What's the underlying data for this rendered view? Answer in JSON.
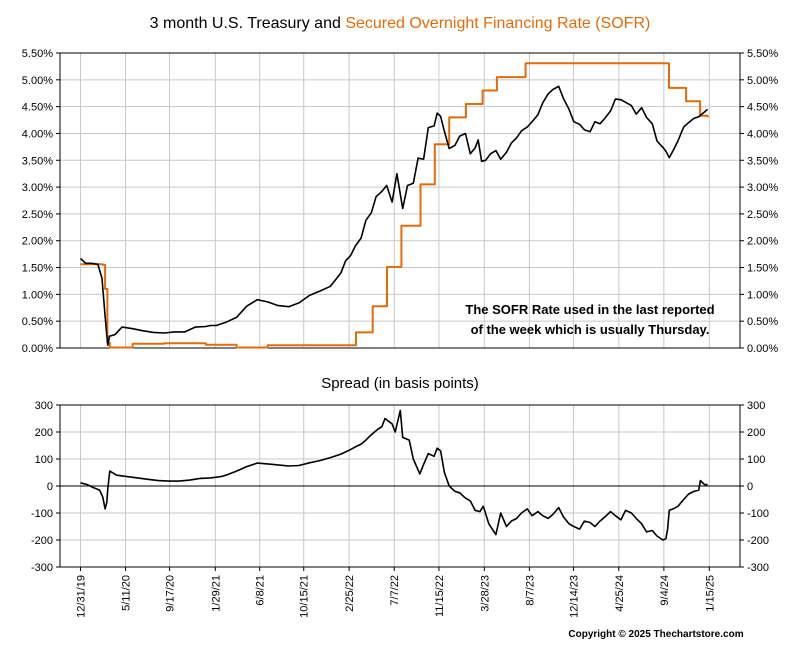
{
  "chart_data": [
    {
      "type": "line",
      "title_part1": "3 month U.S. Treasury and ",
      "title_part2": "Secured Overnight Financing Rate (SOFR)",
      "annotation_line1": "The SOFR Rate used in the last reported",
      "annotation_line2": "of the week which is usually Thursday.",
      "ylim": [
        0,
        5.5
      ],
      "yticks": [
        "0.00%",
        "0.50%",
        "1.00%",
        "1.50%",
        "2.00%",
        "2.50%",
        "3.00%",
        "3.50%",
        "4.00%",
        "4.50%",
        "5.00%",
        "5.50%"
      ],
      "grid": true,
      "colors": {
        "treasury": "#000000",
        "sofr": "#E36C0A"
      },
      "series": [
        {
          "key": "treasury",
          "x": [
            "2019-12-31",
            "2020-01-15",
            "2020-02-01",
            "2020-02-20",
            "2020-03-03",
            "2020-03-10",
            "2020-03-16",
            "2020-03-20",
            "2020-03-25",
            "2020-04-10",
            "2020-05-01",
            "2020-06-01",
            "2020-07-01",
            "2020-08-01",
            "2020-09-01",
            "2020-10-01",
            "2020-11-01",
            "2020-12-01",
            "2021-01-01",
            "2021-01-15",
            "2021-02-01",
            "2021-02-15",
            "2021-03-01",
            "2021-04-01",
            "2021-05-01",
            "2021-06-01",
            "2021-07-01",
            "2021-08-01",
            "2021-09-01",
            "2021-10-01",
            "2021-11-01",
            "2021-12-01",
            "2022-01-01",
            "2022-01-15",
            "2022-02-01",
            "2022-02-15",
            "2022-03-01",
            "2022-03-15",
            "2022-04-01",
            "2022-04-15",
            "2022-05-01",
            "2022-05-15",
            "2022-06-01",
            "2022-06-15",
            "2022-07-01",
            "2022-07-15",
            "2022-08-01",
            "2022-08-15",
            "2022-09-01",
            "2022-09-15",
            "2022-10-01",
            "2022-10-15",
            "2022-11-01",
            "2022-11-10",
            "2022-11-20",
            "2022-12-01",
            "2022-12-15",
            "2023-01-01",
            "2023-01-15",
            "2023-02-01",
            "2023-02-15",
            "2023-03-01",
            "2023-03-10",
            "2023-03-20",
            "2023-04-01",
            "2023-04-15",
            "2023-05-01",
            "2023-05-15",
            "2023-06-01",
            "2023-06-15",
            "2023-07-01",
            "2023-07-15",
            "2023-08-01",
            "2023-08-15",
            "2023-09-01",
            "2023-09-15",
            "2023-10-01",
            "2023-10-15",
            "2023-11-01",
            "2023-11-15",
            "2023-12-01",
            "2023-12-15",
            "2024-01-01",
            "2024-01-15",
            "2024-02-01",
            "2024-02-15",
            "2024-03-01",
            "2024-03-15",
            "2024-04-01",
            "2024-04-15",
            "2024-05-01",
            "2024-05-15",
            "2024-06-01",
            "2024-06-15",
            "2024-07-01",
            "2024-07-15",
            "2024-08-01",
            "2024-08-15",
            "2024-09-01",
            "2024-09-10",
            "2024-09-20",
            "2024-10-01",
            "2024-10-15",
            "2024-11-01",
            "2024-11-15",
            "2024-12-01",
            "2024-12-15",
            "2025-01-01",
            "2025-01-10"
          ],
          "values": [
            1.67,
            1.58,
            1.58,
            1.56,
            1.3,
            0.75,
            0.32,
            0.05,
            0.22,
            0.25,
            0.39,
            0.36,
            0.32,
            0.29,
            0.28,
            0.3,
            0.3,
            0.39,
            0.4,
            0.42,
            0.42,
            0.45,
            0.48,
            0.57,
            0.78,
            0.9,
            0.86,
            0.79,
            0.77,
            0.84,
            0.98,
            1.06,
            1.15,
            1.26,
            1.4,
            1.63,
            1.72,
            1.9,
            2.05,
            2.38,
            2.52,
            2.82,
            2.92,
            3.03,
            2.72,
            3.25,
            2.6,
            3.03,
            3.07,
            3.54,
            3.52,
            4.11,
            4.14,
            4.38,
            4.32,
            4.04,
            3.72,
            3.78,
            3.95,
            4.0,
            3.62,
            3.73,
            3.88,
            3.48,
            3.5,
            3.62,
            3.68,
            3.52,
            3.65,
            3.82,
            3.92,
            4.05,
            4.12,
            4.22,
            4.35,
            4.57,
            4.74,
            4.82,
            4.88,
            4.65,
            4.45,
            4.22,
            4.17,
            4.07,
            4.03,
            4.22,
            4.18,
            4.28,
            4.42,
            4.64,
            4.63,
            4.58,
            4.52,
            4.36,
            4.48,
            4.3,
            4.18,
            3.86,
            3.74,
            3.67,
            3.55,
            3.68,
            3.86,
            4.12,
            4.2,
            4.28,
            4.31,
            4.4,
            4.45
          ]
        },
        {
          "key": "sofr",
          "x": [
            "2019-12-31",
            "2020-02-27",
            "2020-03-05",
            "2020-03-12",
            "2020-03-19",
            "2020-03-26",
            "2020-06-01",
            "2020-09-01",
            "2021-01-01",
            "2021-04-01",
            "2021-07-01",
            "2022-03-17",
            "2022-05-05",
            "2022-06-16",
            "2022-07-28",
            "2022-09-22",
            "2022-11-03",
            "2022-12-15",
            "2023-02-02",
            "2023-03-23",
            "2023-05-04",
            "2023-07-27",
            "2024-09-19",
            "2024-11-08",
            "2024-12-19",
            "2025-01-10"
          ],
          "values": [
            1.56,
            1.56,
            1.55,
            1.1,
            0.1,
            0.01,
            0.08,
            0.09,
            0.06,
            0.01,
            0.05,
            0.29,
            0.78,
            1.51,
            2.28,
            3.05,
            3.8,
            4.3,
            4.55,
            4.8,
            5.05,
            5.31,
            4.85,
            4.6,
            4.33,
            4.3
          ]
        }
      ]
    },
    {
      "type": "line",
      "title": "Spread (in basis points)",
      "ylim": [
        -300,
        300
      ],
      "yticks": [
        "-300",
        "-200",
        "-100",
        "0",
        "100",
        "200",
        "300"
      ],
      "grid": true,
      "zero_line": true,
      "xticks": [
        "12/31/19",
        "5/11/20",
        "9/17/20",
        "1/29/21",
        "6/8/21",
        "10/15/21",
        "2/25/22",
        "7/7/22",
        "11/15/22",
        "3/28/23",
        "8/7/23",
        "12/14/23",
        "4/25/24",
        "9/4/24",
        "1/15/25"
      ],
      "series": [
        {
          "key": "spread",
          "color": "#000000",
          "x": [
            "2019-12-31",
            "2020-01-20",
            "2020-02-05",
            "2020-02-25",
            "2020-03-05",
            "2020-03-12",
            "2020-03-17",
            "2020-03-20",
            "2020-03-26",
            "2020-04-15",
            "2020-05-15",
            "2020-06-15",
            "2020-07-15",
            "2020-08-15",
            "2020-09-15",
            "2020-10-15",
            "2020-11-15",
            "2020-12-15",
            "2021-01-15",
            "2021-02-15",
            "2021-03-01",
            "2021-04-01",
            "2021-05-01",
            "2021-06-01",
            "2021-07-01",
            "2021-08-01",
            "2021-09-01",
            "2021-10-01",
            "2021-11-01",
            "2021-12-01",
            "2022-01-01",
            "2022-02-01",
            "2022-03-01",
            "2022-03-15",
            "2022-04-01",
            "2022-04-15",
            "2022-05-01",
            "2022-05-20",
            "2022-06-01",
            "2022-06-10",
            "2022-06-20",
            "2022-07-01",
            "2022-07-10",
            "2022-07-25",
            "2022-08-01",
            "2022-08-20",
            "2022-09-01",
            "2022-09-20",
            "2022-10-01",
            "2022-10-15",
            "2022-11-01",
            "2022-11-10",
            "2022-11-20",
            "2022-12-01",
            "2022-12-15",
            "2023-01-01",
            "2023-01-15",
            "2023-02-01",
            "2023-02-15",
            "2023-03-01",
            "2023-03-15",
            "2023-03-25",
            "2023-04-10",
            "2023-05-01",
            "2023-05-15",
            "2023-06-01",
            "2023-06-15",
            "2023-07-01",
            "2023-07-15",
            "2023-08-01",
            "2023-08-15",
            "2023-09-01",
            "2023-09-15",
            "2023-10-01",
            "2023-10-15",
            "2023-11-01",
            "2023-11-15",
            "2023-12-01",
            "2023-12-15",
            "2024-01-01",
            "2024-01-15",
            "2024-02-01",
            "2024-02-15",
            "2024-03-01",
            "2024-03-15",
            "2024-04-01",
            "2024-04-15",
            "2024-05-01",
            "2024-05-15",
            "2024-06-01",
            "2024-06-15",
            "2024-07-01",
            "2024-07-15",
            "2024-08-01",
            "2024-08-15",
            "2024-09-01",
            "2024-09-10",
            "2024-09-15",
            "2024-09-20",
            "2024-10-01",
            "2024-10-15",
            "2024-11-01",
            "2024-11-15",
            "2024-12-01",
            "2024-12-15",
            "2024-12-20",
            "2025-01-01",
            "2025-01-10"
          ],
          "values": [
            12,
            5,
            -5,
            -15,
            -40,
            -85,
            -60,
            -10,
            55,
            40,
            35,
            30,
            25,
            20,
            18,
            18,
            22,
            28,
            30,
            35,
            40,
            55,
            72,
            85,
            82,
            78,
            74,
            76,
            86,
            94,
            105,
            118,
            135,
            145,
            155,
            170,
            190,
            210,
            220,
            250,
            240,
            230,
            200,
            280,
            180,
            170,
            100,
            45,
            80,
            120,
            110,
            140,
            130,
            50,
            0,
            -20,
            -25,
            -45,
            -55,
            -90,
            -95,
            -75,
            -140,
            -180,
            -100,
            -150,
            -130,
            -120,
            -100,
            -85,
            -110,
            -95,
            -110,
            -120,
            -105,
            -80,
            -115,
            -140,
            -150,
            -160,
            -130,
            -135,
            -150,
            -130,
            -115,
            -95,
            -110,
            -125,
            -90,
            -100,
            -120,
            -140,
            -170,
            -165,
            -185,
            -200,
            -195,
            -160,
            -90,
            -85,
            -75,
            -50,
            -30,
            -20,
            -15,
            20,
            5,
            5
          ]
        }
      ]
    }
  ],
  "footer": {
    "copyright": "Copyright © 2025 Thechartstore.com"
  }
}
